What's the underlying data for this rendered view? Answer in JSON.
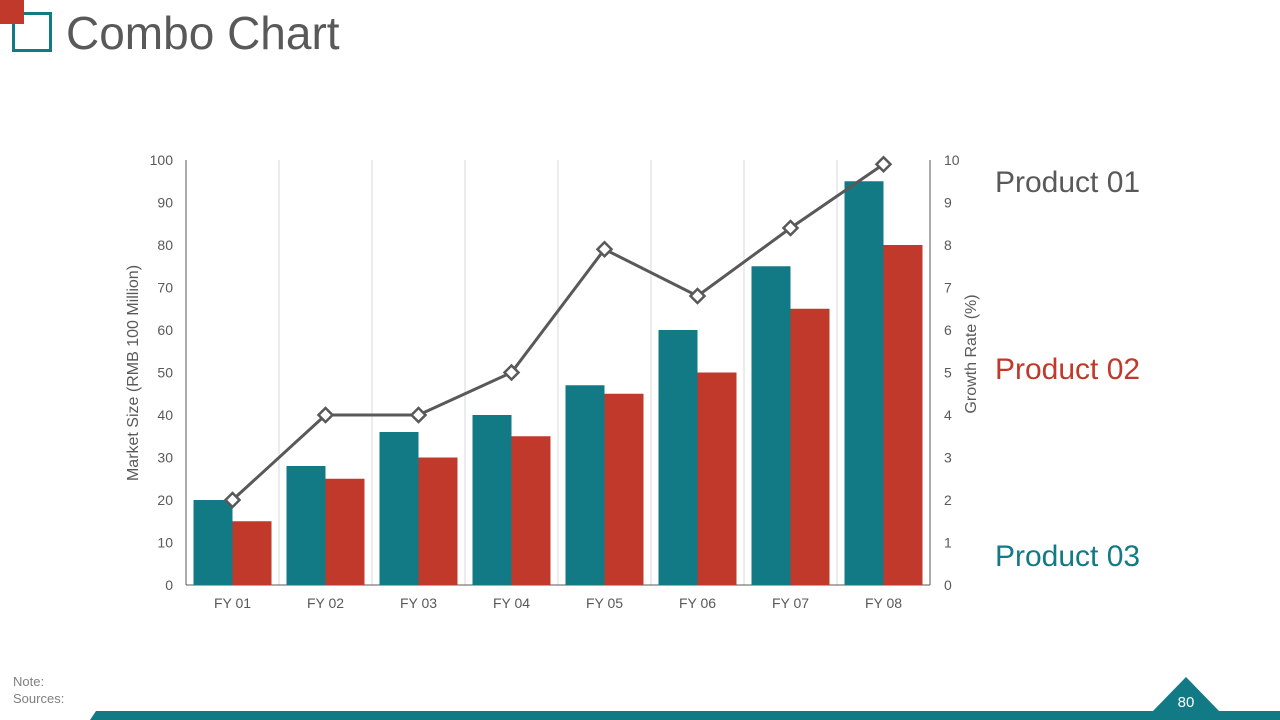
{
  "slide": {
    "title": "Combo Chart",
    "page_number": "80",
    "note_label": "Note:",
    "sources_label": "Sources:"
  },
  "colors": {
    "teal": "#127a85",
    "red": "#c0392b",
    "line": "#595959",
    "text": "#595959"
  },
  "legend": [
    {
      "label": "Product 01",
      "color": "#595959"
    },
    {
      "label": "Product 02",
      "color": "#c0392b"
    },
    {
      "label": "Product 03",
      "color": "#127a85"
    }
  ],
  "chart_data": {
    "type": "bar",
    "title": "",
    "categories": [
      "FY 01",
      "FY 02",
      "FY 03",
      "FY 04",
      "FY 05",
      "FY 06",
      "FY 07",
      "FY 08"
    ],
    "ylabel": "Market Size (RMB 100 Million)",
    "y2label": "Growth Rate (%)",
    "ylim": [
      0,
      100
    ],
    "y2lim": [
      0,
      10
    ],
    "yticks": [
      "0",
      "10",
      "20",
      "30",
      "40",
      "50",
      "60",
      "70",
      "80",
      "90",
      "100"
    ],
    "y2ticks": [
      "0",
      "1",
      "2",
      "3",
      "4",
      "5",
      "6",
      "7",
      "8",
      "9",
      "10"
    ],
    "grid": "vertical",
    "legend_position": "right",
    "series": [
      {
        "type": "bar",
        "axis": "left",
        "color": "#127a85",
        "values": [
          20,
          28,
          36,
          40,
          47,
          60,
          75,
          95
        ]
      },
      {
        "type": "bar",
        "axis": "left",
        "color": "#c0392b",
        "values": [
          15,
          25,
          30,
          35,
          45,
          50,
          65,
          80
        ]
      },
      {
        "type": "line",
        "axis": "right",
        "color": "#595959",
        "marker": "diamond",
        "values": [
          2,
          4,
          4,
          5,
          7.9,
          6.8,
          8.4,
          9.9
        ]
      }
    ]
  }
}
